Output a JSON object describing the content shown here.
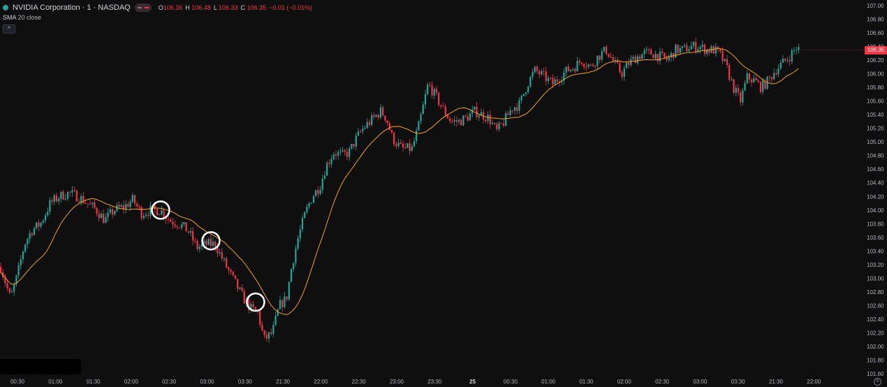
{
  "legend": {
    "symbol": "NVIDIA Corporation · 1 · NASDAQ",
    "o_label": "O",
    "o_value": "106.36",
    "h_label": "H",
    "h_value": "106.48",
    "l_label": "L",
    "l_value": "106.33",
    "c_label": "C",
    "c_value": "106.35",
    "change": "−0.01 (−0.01%)"
  },
  "indicator": {
    "name": "SMA",
    "params": "20 close"
  },
  "last_price": "106.35",
  "colors": {
    "up": "#26a69a",
    "down": "#f23645",
    "sma": "#f7a21b",
    "background": "#0f0f0f"
  },
  "chart_data": {
    "type": "candlestick",
    "ylim": [
      101.6,
      107.0
    ],
    "y_ticks": [
      "107.00",
      "106.80",
      "106.60",
      "106.40",
      "106.20",
      "106.00",
      "105.80",
      "105.60",
      "105.40",
      "105.20",
      "105.00",
      "104.80",
      "104.60",
      "104.40",
      "104.20",
      "104.00",
      "103.80",
      "103.60",
      "103.40",
      "103.20",
      "103.00",
      "102.80",
      "102.60",
      "102.40",
      "102.20",
      "102.00",
      "101.80",
      "101.60"
    ],
    "x_ticks": [
      "00:30",
      "01:00",
      "01:30",
      "02:00",
      "02:30",
      "03:00",
      "03:30",
      "21:30",
      "22:00",
      "22:30",
      "23:00",
      "23:30",
      "25",
      "00:30",
      "01:00",
      "01:30",
      "02:00",
      "02:30",
      "03:00",
      "03:30",
      "21:30",
      "22:00"
    ],
    "close_path": [
      [
        0,
        103.2
      ],
      [
        15,
        102.7
      ],
      [
        25,
        103.05
      ],
      [
        35,
        103.5
      ],
      [
        45,
        103.7
      ],
      [
        58,
        103.8
      ],
      [
        72,
        104.1
      ],
      [
        85,
        104.2
      ],
      [
        98,
        104.25
      ],
      [
        112,
        104.2
      ],
      [
        125,
        104.1
      ],
      [
        138,
        104.0
      ],
      [
        150,
        103.85
      ],
      [
        163,
        104.0
      ],
      [
        178,
        104.05
      ],
      [
        190,
        104.15
      ],
      [
        203,
        103.95
      ],
      [
        216,
        104.0
      ],
      [
        230,
        104.0
      ],
      [
        243,
        103.85
      ],
      [
        256,
        103.8
      ],
      [
        269,
        103.7
      ],
      [
        282,
        103.45
      ],
      [
        295,
        103.5
      ],
      [
        308,
        103.5
      ],
      [
        320,
        103.25
      ],
      [
        333,
        103.0
      ],
      [
        346,
        102.75
      ],
      [
        359,
        102.55
      ],
      [
        369,
        102.5
      ],
      [
        378,
        102.1
      ],
      [
        390,
        102.2
      ],
      [
        400,
        102.6
      ],
      [
        410,
        102.7
      ],
      [
        418,
        103.2
      ],
      [
        427,
        103.6
      ],
      [
        437,
        103.95
      ],
      [
        447,
        104.2
      ],
      [
        458,
        104.35
      ],
      [
        467,
        104.65
      ],
      [
        478,
        104.85
      ],
      [
        490,
        104.8
      ],
      [
        500,
        104.85
      ],
      [
        510,
        105.05
      ],
      [
        520,
        105.2
      ],
      [
        530,
        105.3
      ],
      [
        545,
        105.45
      ],
      [
        553,
        105.35
      ],
      [
        562,
        105.05
      ],
      [
        575,
        104.9
      ],
      [
        590,
        104.9
      ],
      [
        600,
        105.25
      ],
      [
        613,
        105.85
      ],
      [
        625,
        105.65
      ],
      [
        636,
        105.45
      ],
      [
        646,
        105.3
      ],
      [
        657,
        105.3
      ],
      [
        667,
        105.35
      ],
      [
        680,
        105.45
      ],
      [
        690,
        105.4
      ],
      [
        700,
        105.35
      ],
      [
        711,
        105.15
      ],
      [
        722,
        105.3
      ],
      [
        733,
        105.5
      ],
      [
        744,
        105.55
      ],
      [
        755,
        105.85
      ],
      [
        766,
        106.05
      ],
      [
        780,
        105.95
      ],
      [
        791,
        105.85
      ],
      [
        801,
        105.95
      ],
      [
        812,
        106.05
      ],
      [
        822,
        106.1
      ],
      [
        833,
        106.2
      ],
      [
        846,
        106.1
      ],
      [
        856,
        106.25
      ],
      [
        868,
        106.35
      ],
      [
        880,
        106.15
      ],
      [
        890,
        106.0
      ],
      [
        900,
        106.15
      ],
      [
        912,
        106.25
      ],
      [
        923,
        106.3
      ],
      [
        934,
        106.3
      ],
      [
        945,
        106.25
      ],
      [
        956,
        106.2
      ],
      [
        967,
        106.35
      ],
      [
        978,
        106.35
      ],
      [
        989,
        106.4
      ],
      [
        1000,
        106.4
      ],
      [
        1012,
        106.35
      ],
      [
        1022,
        106.35
      ],
      [
        1030,
        106.3
      ],
      [
        1040,
        106.1
      ],
      [
        1050,
        105.8
      ],
      [
        1060,
        105.6
      ],
      [
        1070,
        105.95
      ],
      [
        1080,
        105.9
      ],
      [
        1090,
        105.8
      ],
      [
        1100,
        105.9
      ],
      [
        1110,
        106.05
      ],
      [
        1120,
        106.15
      ],
      [
        1130,
        106.25
      ],
      [
        1140,
        106.38
      ],
      [
        1145,
        106.35
      ]
    ],
    "sma_period": 20,
    "highlights": [
      {
        "x_label": "02:20",
        "price": 104.0
      },
      {
        "x_label": "03:00",
        "price": 103.55
      },
      {
        "x_label": "03:35",
        "price": 102.65
      }
    ]
  }
}
